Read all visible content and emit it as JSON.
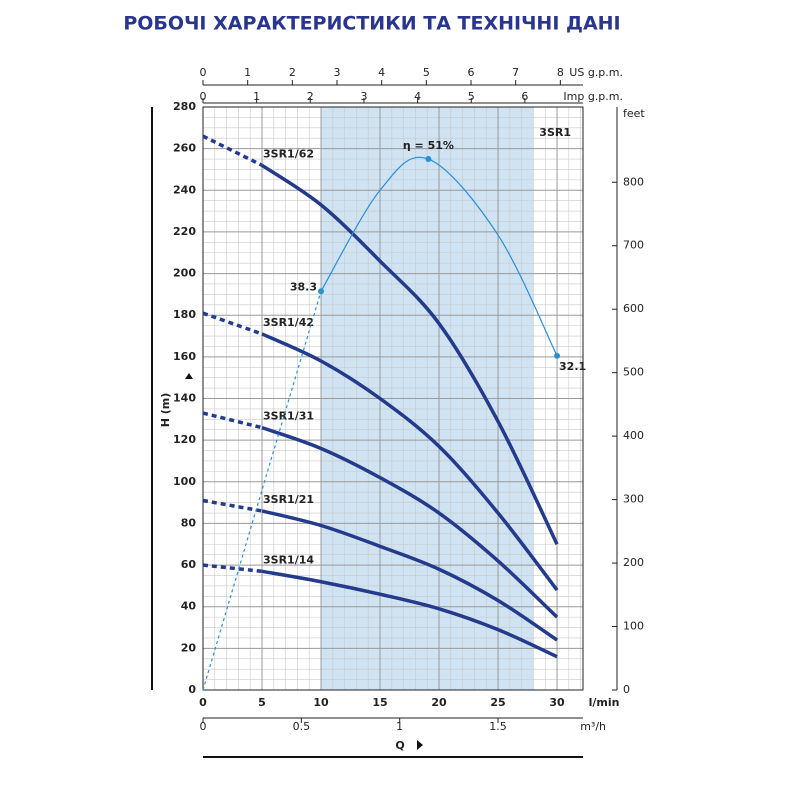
{
  "chart_data": {
    "type": "line",
    "title": "РОБОЧІ ХАРАКТЕРИСТИКИ ТА ТЕХНІЧНІ ДАНІ",
    "model": "3SR1",
    "xlabel": "Q",
    "xunit": "l/min",
    "ylabel": "H (m)",
    "xlim": [
      0,
      32.2
    ],
    "xticks": [
      0,
      5,
      10,
      15,
      20,
      25,
      30
    ],
    "ylim": [
      0,
      280
    ],
    "yticks": [
      0,
      20,
      40,
      60,
      80,
      100,
      120,
      140,
      160,
      180,
      200,
      220,
      240,
      260,
      280
    ],
    "y2label": "feet",
    "y2lim": [
      0,
      918.6
    ],
    "y2ticks": [
      0,
      100,
      200,
      300,
      400,
      500,
      600,
      700,
      800
    ],
    "y3lim": [
      0,
      56
    ],
    "us_gpm": {
      "label": "US g.p.m.",
      "lim": [
        0,
        8.507
      ],
      "ticks": [
        0,
        1,
        2,
        3,
        4,
        5,
        6,
        7,
        8
      ]
    },
    "imp_gpm": {
      "label": "Imp g.p.m.",
      "lim": [
        0,
        7.083
      ],
      "ticks": [
        0,
        1,
        2,
        3,
        4,
        5,
        6
      ]
    },
    "m3h": {
      "label": "m³/h",
      "lim": [
        0,
        1.932
      ],
      "ticks": [
        0,
        0.5,
        1,
        1.5
      ]
    },
    "grid": true,
    "recommended_range": [
      10,
      28
    ],
    "recommended_color": "#cfe3f3",
    "dashed_to_x": 5,
    "x": [
      0,
      5,
      10,
      15,
      20,
      25,
      30
    ],
    "series": [
      {
        "name": "3SR1/62",
        "color": "#243a8c",
        "values": [
          266,
          252,
          233,
          206,
          176,
          129,
          70
        ]
      },
      {
        "name": "3SR1/42",
        "color": "#243a8c",
        "values": [
          181,
          171,
          158,
          140,
          117,
          85,
          48
        ]
      },
      {
        "name": "3SR1/31",
        "color": "#243a8c",
        "values": [
          133,
          126,
          116,
          102,
          85,
          62,
          35
        ]
      },
      {
        "name": "3SR1/21",
        "color": "#243a8c",
        "values": [
          91,
          86,
          79,
          69,
          58,
          43,
          24
        ]
      },
      {
        "name": "3SR1/14",
        "color": "#243a8c",
        "values": [
          60,
          57,
          52,
          46,
          39,
          29,
          16
        ]
      }
    ],
    "efficiency": {
      "axis": "y3",
      "color": "#2b8fd6",
      "dashed_to_x": 10,
      "x": [
        0,
        5,
        10,
        15,
        19.1,
        25,
        30
      ],
      "values": [
        0,
        19.2,
        38.3,
        48,
        51,
        43.7,
        32.1
      ],
      "value_labels": [
        null,
        null,
        "38.3",
        null,
        "η = 51%",
        null,
        "32.1"
      ]
    }
  }
}
